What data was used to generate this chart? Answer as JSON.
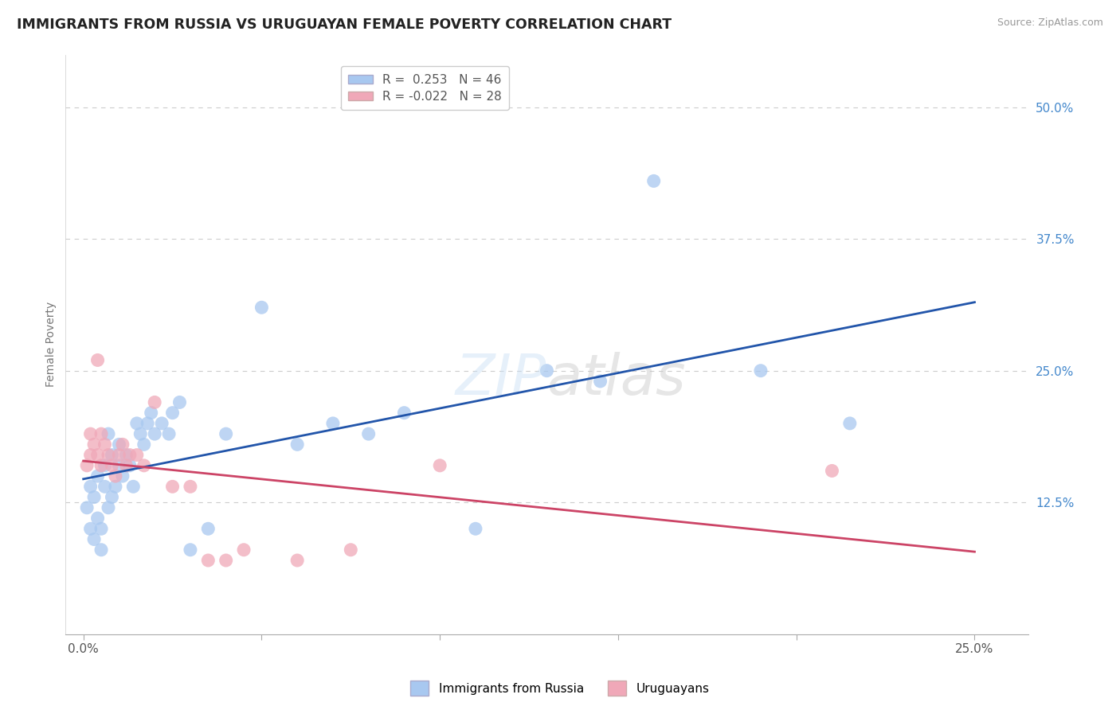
{
  "title": "IMMIGRANTS FROM RUSSIA VS URUGUAYAN FEMALE POVERTY CORRELATION CHART",
  "source": "Source: ZipAtlas.com",
  "ylabel": "Female Poverty",
  "legend_label1": "Immigrants from Russia",
  "legend_label2": "Uruguayans",
  "r1": 0.253,
  "n1": 46,
  "r2": -0.022,
  "n2": 28,
  "blue_color": "#a8c8f0",
  "pink_color": "#f0a8b8",
  "blue_line_color": "#2255aa",
  "pink_line_color": "#cc4466",
  "background_color": "#ffffff",
  "grid_color": "#cccccc",
  "right_ytick_color": "#4488cc",
  "ylim": [
    0.0,
    0.55
  ],
  "xlim": [
    -0.005,
    0.265
  ],
  "yticks": [
    0.125,
    0.25,
    0.375,
    0.5
  ],
  "ytick_labels": [
    "12.5%",
    "25.0%",
    "37.5%",
    "50.0%"
  ],
  "xticks": [
    0.0,
    0.05,
    0.1,
    0.15,
    0.2,
    0.25
  ],
  "xtick_labels": [
    "0.0%",
    "",
    "",
    "",
    "",
    "25.0%"
  ],
  "blue_x": [
    0.001,
    0.002,
    0.002,
    0.003,
    0.003,
    0.004,
    0.004,
    0.005,
    0.005,
    0.006,
    0.006,
    0.007,
    0.007,
    0.008,
    0.008,
    0.009,
    0.01,
    0.01,
    0.011,
    0.012,
    0.013,
    0.014,
    0.015,
    0.016,
    0.017,
    0.018,
    0.019,
    0.02,
    0.022,
    0.024,
    0.025,
    0.027,
    0.03,
    0.035,
    0.04,
    0.05,
    0.06,
    0.07,
    0.08,
    0.09,
    0.11,
    0.13,
    0.145,
    0.16,
    0.19,
    0.215
  ],
  "blue_y": [
    0.12,
    0.1,
    0.14,
    0.09,
    0.13,
    0.11,
    0.15,
    0.1,
    0.08,
    0.14,
    0.16,
    0.12,
    0.19,
    0.13,
    0.17,
    0.14,
    0.16,
    0.18,
    0.15,
    0.17,
    0.16,
    0.14,
    0.2,
    0.19,
    0.18,
    0.2,
    0.21,
    0.19,
    0.2,
    0.19,
    0.21,
    0.22,
    0.08,
    0.1,
    0.19,
    0.31,
    0.18,
    0.2,
    0.19,
    0.21,
    0.1,
    0.25,
    0.24,
    0.43,
    0.25,
    0.2
  ],
  "pink_x": [
    0.001,
    0.002,
    0.002,
    0.003,
    0.004,
    0.004,
    0.005,
    0.005,
    0.006,
    0.007,
    0.008,
    0.009,
    0.01,
    0.011,
    0.012,
    0.013,
    0.015,
    0.017,
    0.02,
    0.025,
    0.03,
    0.035,
    0.04,
    0.045,
    0.06,
    0.075,
    0.1,
    0.21
  ],
  "pink_y": [
    0.16,
    0.17,
    0.19,
    0.18,
    0.17,
    0.26,
    0.16,
    0.19,
    0.18,
    0.17,
    0.16,
    0.15,
    0.17,
    0.18,
    0.16,
    0.17,
    0.17,
    0.16,
    0.22,
    0.14,
    0.14,
    0.07,
    0.07,
    0.08,
    0.07,
    0.08,
    0.16,
    0.155
  ]
}
